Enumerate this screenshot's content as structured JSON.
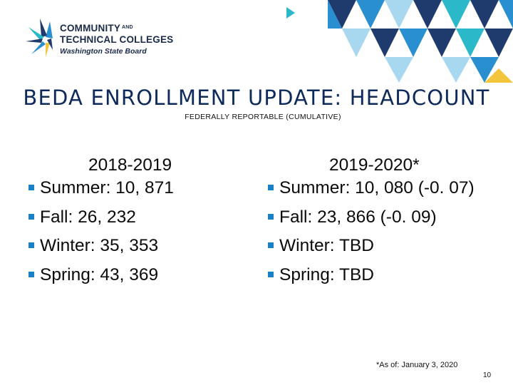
{
  "logo": {
    "line1": "COMMUNITY",
    "line1_small": "AND",
    "line2": "TECHNICAL COLLEGES",
    "line3": "Washington State Board"
  },
  "title": "BEDA ENROLLMENT UPDATE: HEADCOUNT",
  "subtitle": "FEDERALLY REPORTABLE (CUMULATIVE)",
  "columns": [
    {
      "heading": "2018-2019",
      "items": [
        "Summer: 10, 871",
        "Fall: 26, 232",
        "Winter: 35, 353",
        "Spring: 43, 369"
      ]
    },
    {
      "heading": "2019-2020*",
      "items": [
        "Summer: 10, 080 (-0. 07)",
        "Fall: 23, 866 (-0. 09)",
        "Winter: TBD",
        "Spring: TBD"
      ]
    }
  ],
  "footnote": "*As of: January 3, 2020",
  "page_number": "10",
  "colors": {
    "title": "#0d2a5a",
    "bullet": "#1a80c8",
    "tile_navy": "#1f3b6e",
    "tile_blue": "#2a8fd0",
    "tile_light": "#a8d8f0",
    "tile_teal": "#2bb8c8",
    "tile_yellow": "#f2c53d"
  }
}
